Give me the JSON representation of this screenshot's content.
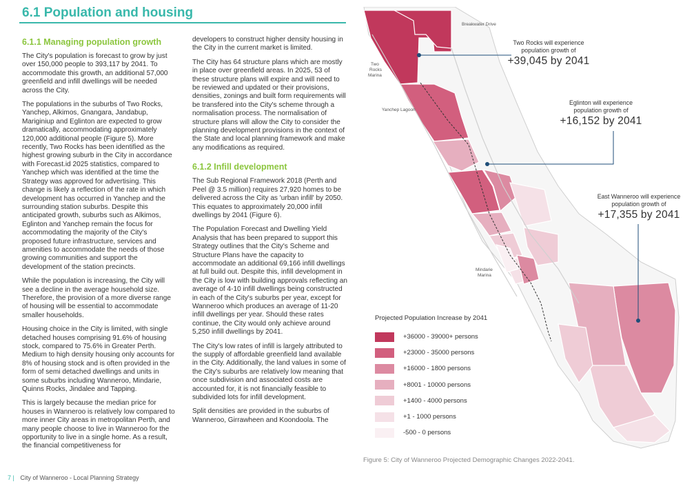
{
  "page": {
    "title": "6.1 Population and housing",
    "footer_page": "7 |",
    "footer_text": "City of Wanneroo - Local Planning Strategy"
  },
  "left_column": {
    "heading": "6.1.1 Managing population growth",
    "paragraphs": [
      "The City's population is forecast to grow by just over 150,000 people to 393,117 by 2041. To accommodate this growth, an additional 57,000 greenfield and infill dwellings will be needed across the City.",
      "The populations in the suburbs of Two Rocks, Yanchep, Alkimos, Gnangara, Jandabup, Mariginiup and Eglinton are expected to grow dramatically, accommodating approximately 120,000 additional people (Figure 5). More recently, Two Rocks has been identified as the highest growing suburb in the City in accordance with Forecast.id 2025 statistics, compared to Yanchep which was identified at the time the Strategy was approved for advertising. This change is likely a reflection of the rate in which development has occurred in Yanchep and the surrounding station suburbs. Despite this anticipated growth, suburbs such as Alkimos, Eglinton and Yanchep remain the focus for accommodating the majority of the City's proposed future infrastructure, services and amenities to accommodate the needs of those growing communities and support the development of the station precincts.",
      "While the population is increasing, the City will see a decline in the average household size. Therefore, the provision of a more diverse range of housing will be essential to accommodate smaller households.",
      "Housing choice in the City is limited, with single detached houses comprising 91.6% of housing stock, compared to 75.6% in Greater Perth. Medium to high density housing only accounts for 8% of housing stock and is often provided in the form of semi detached dwellings and units in some suburbs including Wanneroo, Mindarie, Quinns Rocks, Jindalee and Tapping.",
      "This is largely because the median price for houses in Wanneroo is relatively low compared to more inner City areas in metropolitan Perth, and many people choose to live in Wanneroo for the opportunity to live in a single home. As a result, the financial competitiveness for"
    ]
  },
  "middle_column": {
    "paragraphs_top": [
      "developers to construct higher density housing in the City in the current market is limited.",
      "The City has 64 structure plans which are mostly in place over greenfield areas. In 2025, 53 of these structure plans will expire and will need to be reviewed and updated or their provisions, densities, zonings and built form requirements will be transfered into the City's scheme through a normalisation process. The normalisation of structure plans will allow the City to consider the planning development provisions in the context of the State and local planning framework and make any modifications as required."
    ],
    "heading": "6.1.2 Infill development",
    "paragraphs": [
      "The Sub Regional Framework 2018 (Perth and Peel @ 3.5 million) requires 27,920 homes to be delivered across the City as 'urban infill' by 2050. This equates to approximately 20,000 infill dwellings by 2041 (Figure 6).",
      "The Population Forecast and Dwelling Yield Analysis that has been prepared to support this Strategy outlines that the City's Scheme and Structure Plans have the capacity to accommodate an additional 69,166 infill dwellings at full build out. Despite this, infill development in the City is low with building approvals reflecting an average of 4-10 infill dwellings being constructed in each of the City's suburbs per year, except for Wanneroo which produces an average of 11-20 infill dwellings per year. Should these rates continue, the City would only achieve around 5,250 infill dwellings by 2041.",
      "The City's low rates of infill is largely attributed to the supply of affordable greenfield land available in the City. Additionally, the land values in some of the City's suburbs are relatively low meaning that once subdivision and associated costs are accounted for, it is not financially feasible to subdivided lots for infill development.",
      "Split densities are provided in the suburbs of Wanneroo, Girrawheen and Koondoola. The"
    ]
  },
  "map": {
    "place_labels": {
      "breakwater": "Breakwater Drive",
      "two_rocks_1": "Two",
      "two_rocks_2": "Rocks",
      "two_rocks_3": "Marina",
      "yanchep_lagoon": "Yanchep Lagoon",
      "mindarie_1": "Mindarie",
      "mindarie_2": "Marina"
    },
    "callouts": [
      {
        "text_1": "Two Rocks will experience",
        "text_2": "population growth of",
        "value": "+39,045 by 2041"
      },
      {
        "text_1": "Eglinton will experience",
        "text_2": "population growth of",
        "value": "+16,152 by 2041"
      },
      {
        "text_1": "East Wanneroo will experience",
        "text_2": "population growth of",
        "value": "+17,355 by 2041"
      }
    ],
    "legend": {
      "title": "Projected Population Increase by 2041",
      "items": [
        {
          "label": "+36000 - 39000+ persons",
          "color": "#c1385c"
        },
        {
          "label": "+23000 - 35000 persons",
          "color": "#d25f7e"
        },
        {
          "label": "+16000 - 1800 persons",
          "color": "#dc8aa1"
        },
        {
          "label": "+8001 - 10000 persons",
          "color": "#e6afbf"
        },
        {
          "label": "+1400 - 4000 persons",
          "color": "#efccd6"
        },
        {
          "label": "+1 - 1000 persons",
          "color": "#f5e1e7"
        },
        {
          "label": "-500 - 0 persons",
          "color": "#faf0f3"
        }
      ]
    },
    "caption": "Figure 5: City of Wanneroo Projected Demographic Changes 2022-2041."
  }
}
